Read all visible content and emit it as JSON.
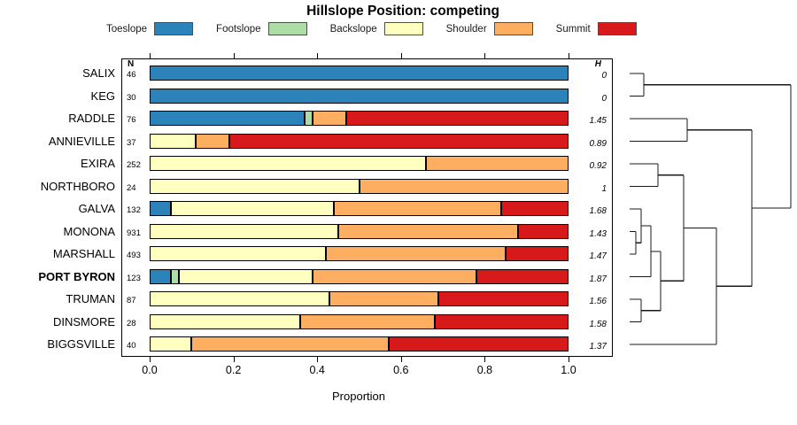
{
  "title": "Hillslope Position: competing",
  "columns": {
    "n_header": "N",
    "h_header": "H"
  },
  "axis": {
    "tick_labels": [
      "0.0",
      "0.2",
      "0.4",
      "0.6",
      "0.8",
      "1.0"
    ],
    "tick_values": [
      0,
      0.2,
      0.4,
      0.6,
      0.8,
      1.0
    ],
    "label": "Proportion"
  },
  "legend": [
    {
      "label": "Toeslope",
      "color": "#2B83BA"
    },
    {
      "label": "Footslope",
      "color": "#ABDDA4"
    },
    {
      "label": "Backslope",
      "color": "#FFFFBF"
    },
    {
      "label": "Shoulder",
      "color": "#FDAE61"
    },
    {
      "label": "Summit",
      "color": "#D7191C"
    }
  ],
  "chart_data": {
    "type": "bar",
    "stacked": true,
    "orientation": "horizontal",
    "title": "Hillslope Position: competing",
    "xlabel": "Proportion",
    "xlim": [
      0,
      1
    ],
    "legend_position": "top",
    "categories": [
      "SALIX",
      "KEG",
      "RADDLE",
      "ANNIEVILLE",
      "EXIRA",
      "NORTHBORO",
      "GALVA",
      "MONONA",
      "MARSHALL",
      "PORT BYRON",
      "TRUMAN",
      "DINSMORE",
      "BIGGSVILLE"
    ],
    "bold_categories": [
      "PORT BYRON"
    ],
    "n_values": [
      46,
      30,
      76,
      37,
      252,
      24,
      132,
      931,
      493,
      123,
      87,
      28,
      40
    ],
    "h_values": [
      "0",
      "0",
      "1.45",
      "0.89",
      "0.92",
      "1",
      "1.68",
      "1.43",
      "1.47",
      "1.87",
      "1.56",
      "1.58",
      "1.37"
    ],
    "series": [
      {
        "name": "Toeslope",
        "color": "#2B83BA",
        "values": [
          1.0,
          1.0,
          0.37,
          0.0,
          0.0,
          0.0,
          0.05,
          0.0,
          0.0,
          0.05,
          0.0,
          0.0,
          0.0
        ]
      },
      {
        "name": "Footslope",
        "color": "#ABDDA4",
        "values": [
          0.0,
          0.0,
          0.02,
          0.0,
          0.0,
          0.0,
          0.0,
          0.0,
          0.0,
          0.02,
          0.0,
          0.0,
          0.0
        ]
      },
      {
        "name": "Backslope",
        "color": "#FFFFBF",
        "values": [
          0.0,
          0.0,
          0.0,
          0.11,
          0.66,
          0.5,
          0.39,
          0.45,
          0.42,
          0.32,
          0.43,
          0.36,
          0.1
        ]
      },
      {
        "name": "Shoulder",
        "color": "#FDAE61",
        "values": [
          0.0,
          0.0,
          0.08,
          0.08,
          0.34,
          0.5,
          0.4,
          0.43,
          0.43,
          0.39,
          0.26,
          0.32,
          0.47
        ]
      },
      {
        "name": "Summit",
        "color": "#D7191C",
        "values": [
          0.0,
          0.0,
          0.53,
          0.81,
          0.0,
          0.0,
          0.16,
          0.12,
          0.15,
          0.22,
          0.31,
          0.32,
          0.43
        ]
      }
    ]
  },
  "dendrogram": {
    "leaf_order": [
      "SALIX",
      "KEG",
      "RADDLE",
      "ANNIEVILLE",
      "EXIRA",
      "NORTHBORO",
      "GALVA",
      "MONONA",
      "MARSHALL",
      "PORT BYRON",
      "TRUMAN",
      "DINSMORE",
      "BIGGSVILLE"
    ],
    "merges": [
      {
        "a": "SALIX",
        "b": "KEG",
        "x": 727
      },
      {
        "a": "RADDLE",
        "b": "ANNIEVILLE",
        "x": 776
      },
      {
        "a": "EXIRA",
        "b": "NORTHBORO",
        "x": 743
      },
      {
        "a": "MONONA",
        "b": "MARSHALL",
        "x": 718
      },
      {
        "a": "GALVA",
        "b": "@3",
        "x": 724
      },
      {
        "a": "@4",
        "b": "PORT BYRON",
        "x": 735
      },
      {
        "a": "TRUMAN",
        "b": "DINSMORE",
        "x": 724
      },
      {
        "a": "@5",
        "b": "@6",
        "x": 746
      },
      {
        "a": "@2",
        "b": "@7",
        "x": 772
      },
      {
        "a": "@8",
        "b": "BIGGSVILLE",
        "x": 809
      },
      {
        "a": "@1",
        "b": "@9",
        "x": 849
      },
      {
        "a": "@0",
        "b": "@10",
        "x": 893
      }
    ]
  }
}
